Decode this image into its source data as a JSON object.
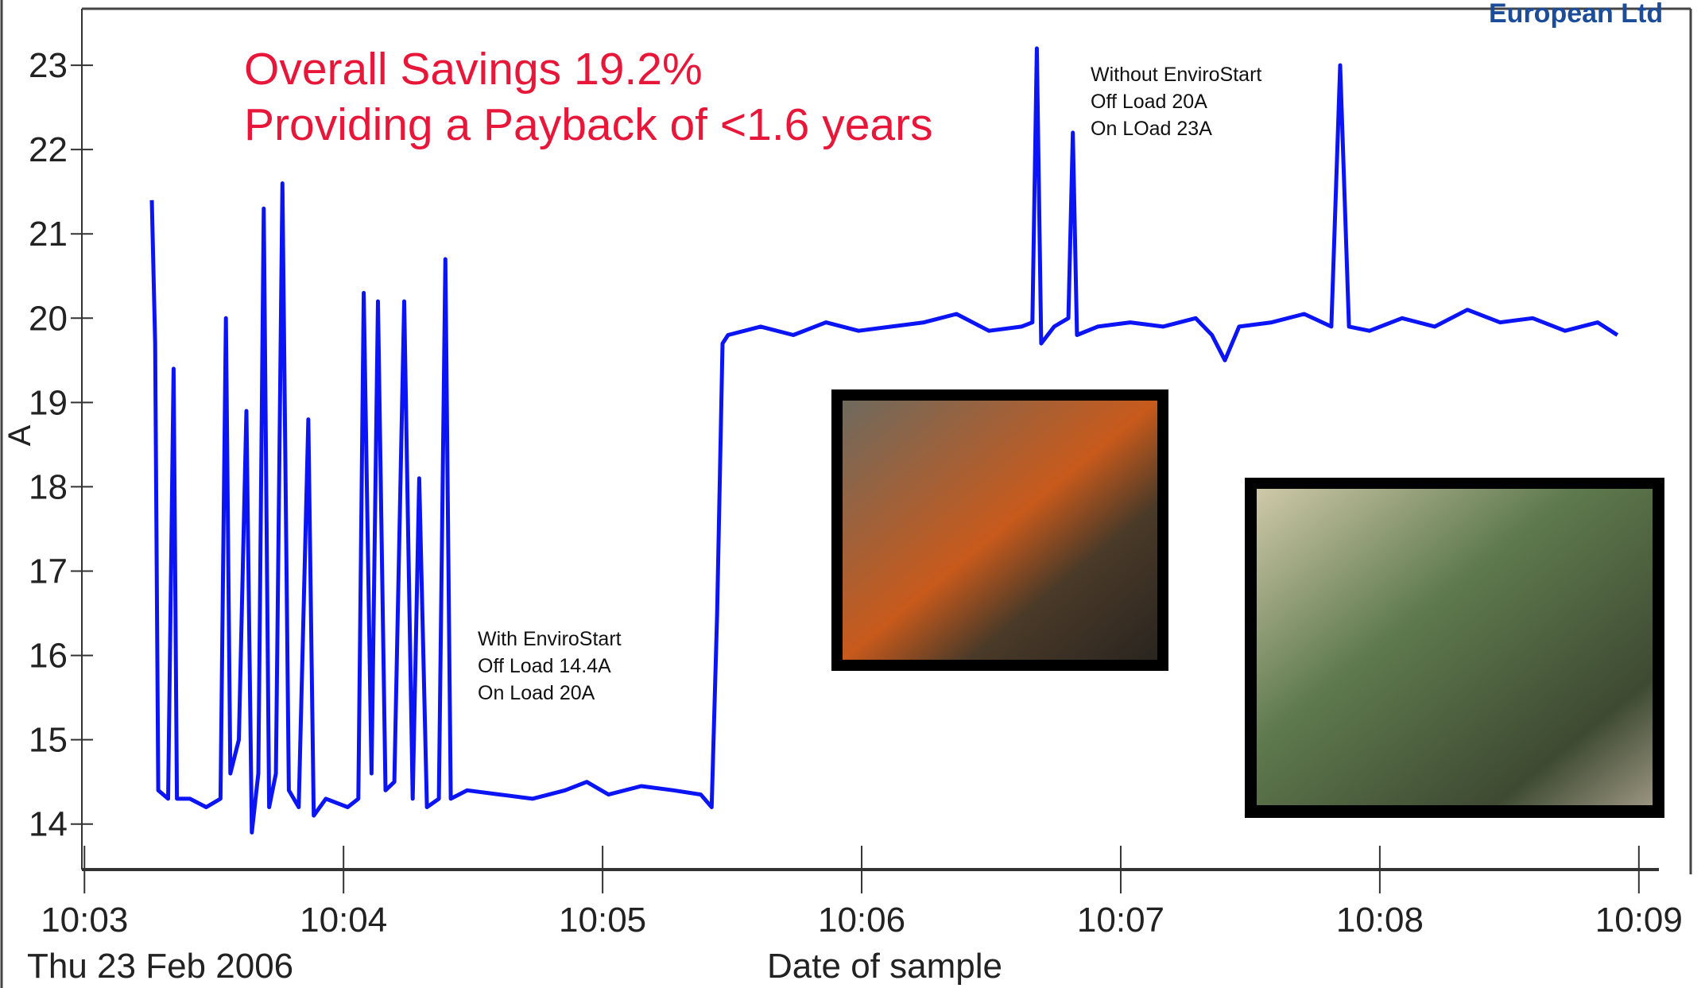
{
  "chart_data": {
    "type": "line",
    "title": "Overall Savings 19.2%",
    "subtitle": "Providing a Payback of <1.6 years",
    "brand": "European Ltd",
    "y_label": "A",
    "x_label": "Date of sample",
    "date_label": "Thu 23 Feb 2006",
    "annotations": [
      {
        "lines": [
          "With EnviroStart",
          "Off Load 14.4A",
          "On Load 20A"
        ]
      },
      {
        "lines": [
          "Without EnviroStart",
          "Off Load 20A",
          "On LOad 23A"
        ]
      }
    ],
    "series": [
      {
        "color": "#0a14f5",
        "x": [
          603.26,
          603.273,
          603.285,
          603.323,
          603.344,
          603.357,
          603.407,
          603.47,
          603.525,
          603.546,
          603.563,
          603.596,
          603.625,
          603.646,
          603.671,
          603.692,
          603.713,
          603.739,
          603.764,
          603.789,
          603.827,
          603.864,
          603.885,
          603.932,
          604.016,
          604.057,
          604.078,
          604.108,
          604.133,
          604.162,
          604.196,
          604.234,
          604.267,
          604.292,
          604.322,
          604.368,
          604.393,
          604.414,
          604.477,
          604.603,
          604.729,
          604.855,
          604.939,
          605.023,
          605.149,
          605.274,
          605.379,
          605.421,
          605.442,
          605.463,
          605.484,
          605.61,
          605.736,
          605.862,
          605.988,
          606.114,
          606.24,
          606.366,
          606.491,
          606.617,
          606.659,
          606.676,
          606.693,
          606.743,
          606.798,
          606.815,
          606.831,
          606.911,
          607.037,
          607.163,
          607.289,
          607.352,
          607.402,
          607.457,
          607.582,
          607.708,
          607.813,
          607.847,
          607.881,
          607.96,
          608.086,
          608.212,
          608.338,
          608.464,
          608.59,
          608.715,
          608.841,
          608.917
        ],
        "values": [
          21.4,
          19.7,
          14.4,
          14.3,
          19.4,
          14.3,
          14.3,
          14.2,
          14.3,
          20.0,
          14.6,
          15.0,
          18.9,
          13.9,
          14.6,
          21.3,
          14.2,
          14.6,
          21.6,
          14.4,
          14.2,
          18.8,
          14.1,
          14.3,
          14.2,
          14.3,
          20.3,
          14.6,
          20.2,
          14.4,
          14.5,
          20.2,
          14.3,
          18.1,
          14.2,
          14.3,
          20.7,
          14.3,
          14.4,
          14.35,
          14.3,
          14.4,
          14.5,
          14.35,
          14.45,
          14.4,
          14.35,
          14.2,
          16.5,
          19.7,
          19.8,
          19.9,
          19.8,
          19.95,
          19.85,
          19.9,
          19.95,
          20.05,
          19.85,
          19.9,
          19.95,
          23.2,
          19.7,
          19.9,
          20.0,
          22.2,
          19.8,
          19.9,
          19.95,
          19.9,
          20.0,
          19.8,
          19.5,
          19.9,
          19.95,
          20.05,
          19.9,
          23.0,
          19.9,
          19.85,
          20.0,
          19.9,
          20.1,
          19.95,
          20.0,
          19.85,
          19.95,
          19.8
        ]
      }
    ],
    "xlim": [
      602.99,
      609.2
    ],
    "xticks": [
      {
        "value": 603,
        "label": "10:03"
      },
      {
        "value": 604,
        "label": "10:04"
      },
      {
        "value": 605,
        "label": "10:05"
      },
      {
        "value": 606,
        "label": "10:06"
      },
      {
        "value": 607,
        "label": "10:07"
      },
      {
        "value": 608,
        "label": "10:08"
      },
      {
        "value": 609,
        "label": "10:09"
      }
    ],
    "ylim": [
      13.46,
      23.67
    ],
    "yticks": [
      14,
      15,
      16,
      17,
      18,
      19,
      20,
      21,
      22,
      23
    ]
  }
}
